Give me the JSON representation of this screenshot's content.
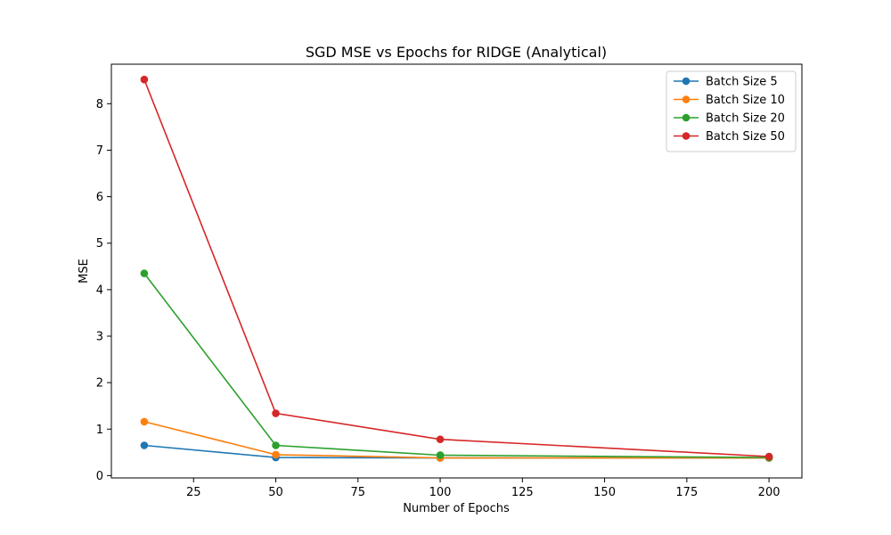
{
  "chart_data": {
    "type": "line",
    "title": "SGD MSE vs Epochs for RIDGE (Analytical)",
    "xlabel": "Number of Epochs",
    "ylabel": "MSE",
    "xlim": [
      0,
      210
    ],
    "ylim": [
      -0.05,
      8.85
    ],
    "xticks": [
      25,
      50,
      75,
      100,
      125,
      150,
      175,
      200
    ],
    "yticks": [
      0,
      1,
      2,
      3,
      4,
      5,
      6,
      7,
      8
    ],
    "grid": false,
    "legend_position": "top-right",
    "x": [
      10,
      50,
      100,
      200
    ],
    "series": [
      {
        "name": "Batch Size 5",
        "color": "#1f77b4",
        "values": [
          0.65,
          0.39,
          0.38,
          0.38
        ]
      },
      {
        "name": "Batch Size 10",
        "color": "#ff7f0e",
        "values": [
          1.16,
          0.45,
          0.38,
          0.38
        ]
      },
      {
        "name": "Batch Size 20",
        "color": "#2ca02c",
        "values": [
          4.35,
          0.65,
          0.44,
          0.39
        ]
      },
      {
        "name": "Batch Size 50",
        "color": "#d62728",
        "values": [
          8.52,
          1.34,
          0.78,
          0.41
        ]
      }
    ]
  }
}
